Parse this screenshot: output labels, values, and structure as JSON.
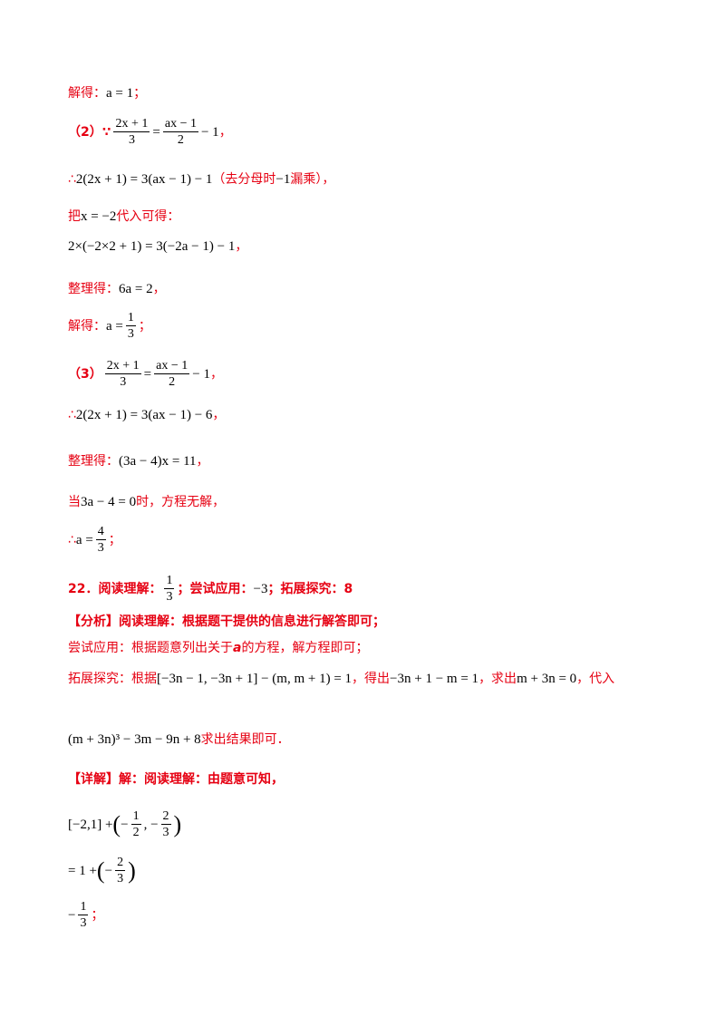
{
  "lines": {
    "l1": {
      "label": "解得：",
      "math": "a = 1",
      "tail": "；"
    },
    "l2": {
      "label": "（2）∵",
      "frac1_num": "2x + 1",
      "frac1_den": "3",
      "eq": "=",
      "frac2_num": "ax − 1",
      "frac2_den": "2",
      "tail_math": "− 1",
      "tail": "，"
    },
    "l3": {
      "label": "∴",
      "math": "2(2x + 1) = 3(ax − 1) − 1",
      "note_a": "（去分母时",
      "note_math": "−1",
      "note_b": "漏乘），"
    },
    "l4": {
      "label_a": "把",
      "math": "x = −2",
      "label_b": "代入可得："
    },
    "l5": {
      "math": "2×(−2×2 + 1) = 3(−2a − 1) − 1",
      "tail": "，"
    },
    "l6": {
      "label": "整理得：",
      "math": "6a = 2",
      "tail": "，"
    },
    "l7": {
      "label": "解得：",
      "math": "a =",
      "frac_num": "1",
      "frac_den": "3",
      "tail": "；"
    },
    "l8": {
      "label": "（3）",
      "frac1_num": "2x + 1",
      "frac1_den": "3",
      "eq": "=",
      "frac2_num": "ax − 1",
      "frac2_den": "2",
      "tail_math": "− 1",
      "tail": "，"
    },
    "l9": {
      "label": "∴",
      "math": "2(2x + 1) = 3(ax − 1) − 6",
      "tail": "，"
    },
    "l10": {
      "label": "整理得：",
      "math": "(3a − 4)x = 11",
      "tail": "，"
    },
    "l11": {
      "label_a": "当",
      "math": "3a − 4 = 0",
      "label_b": "时，方程无解，"
    },
    "l12": {
      "label": "∴",
      "math": "a =",
      "frac_num": "4",
      "frac_den": "3",
      "tail": "；"
    },
    "l13": {
      "label_a": "22．阅读理解：",
      "frac_num": "1",
      "frac_den": "3",
      "label_b": "；尝试应用：",
      "math": "−3",
      "label_c": "；拓展探究：8"
    },
    "l14": {
      "text": "【分析】阅读理解：根据题干提供的信息进行解答即可；"
    },
    "l15": {
      "text_a": "尝试应用：根据题意列出关于",
      "var": "a",
      "text_b": "的方程，解方程即可；"
    },
    "l16": {
      "label_a": "拓展探究：根据",
      "math_a": "[−3n − 1, −3n + 1] − (m, m + 1) = 1",
      "label_b": "，得出",
      "math_b": "−3n + 1 − m = 1",
      "label_c": "，求出",
      "math_c": "m + 3n = 0",
      "label_d": "，代入"
    },
    "l17": {
      "math": "(m + 3n)³ − 3m − 9n + 8",
      "label": "求出结果即可．"
    },
    "l18": {
      "text": "【详解】解：阅读理解：由题意可知，"
    },
    "l19": {
      "math_a": "[−2,1] +",
      "math_b": "−",
      "frac1_num": "1",
      "frac1_den": "2",
      "comma": ", −",
      "frac2_num": "2",
      "frac2_den": "3"
    },
    "l20": {
      "math_a": "= 1 +",
      "math_b": "−",
      "frac_num": "2",
      "frac_den": "3"
    },
    "l21": {
      "math": "−",
      "frac_num": "1",
      "frac_den": "3",
      "tail": "；"
    }
  }
}
